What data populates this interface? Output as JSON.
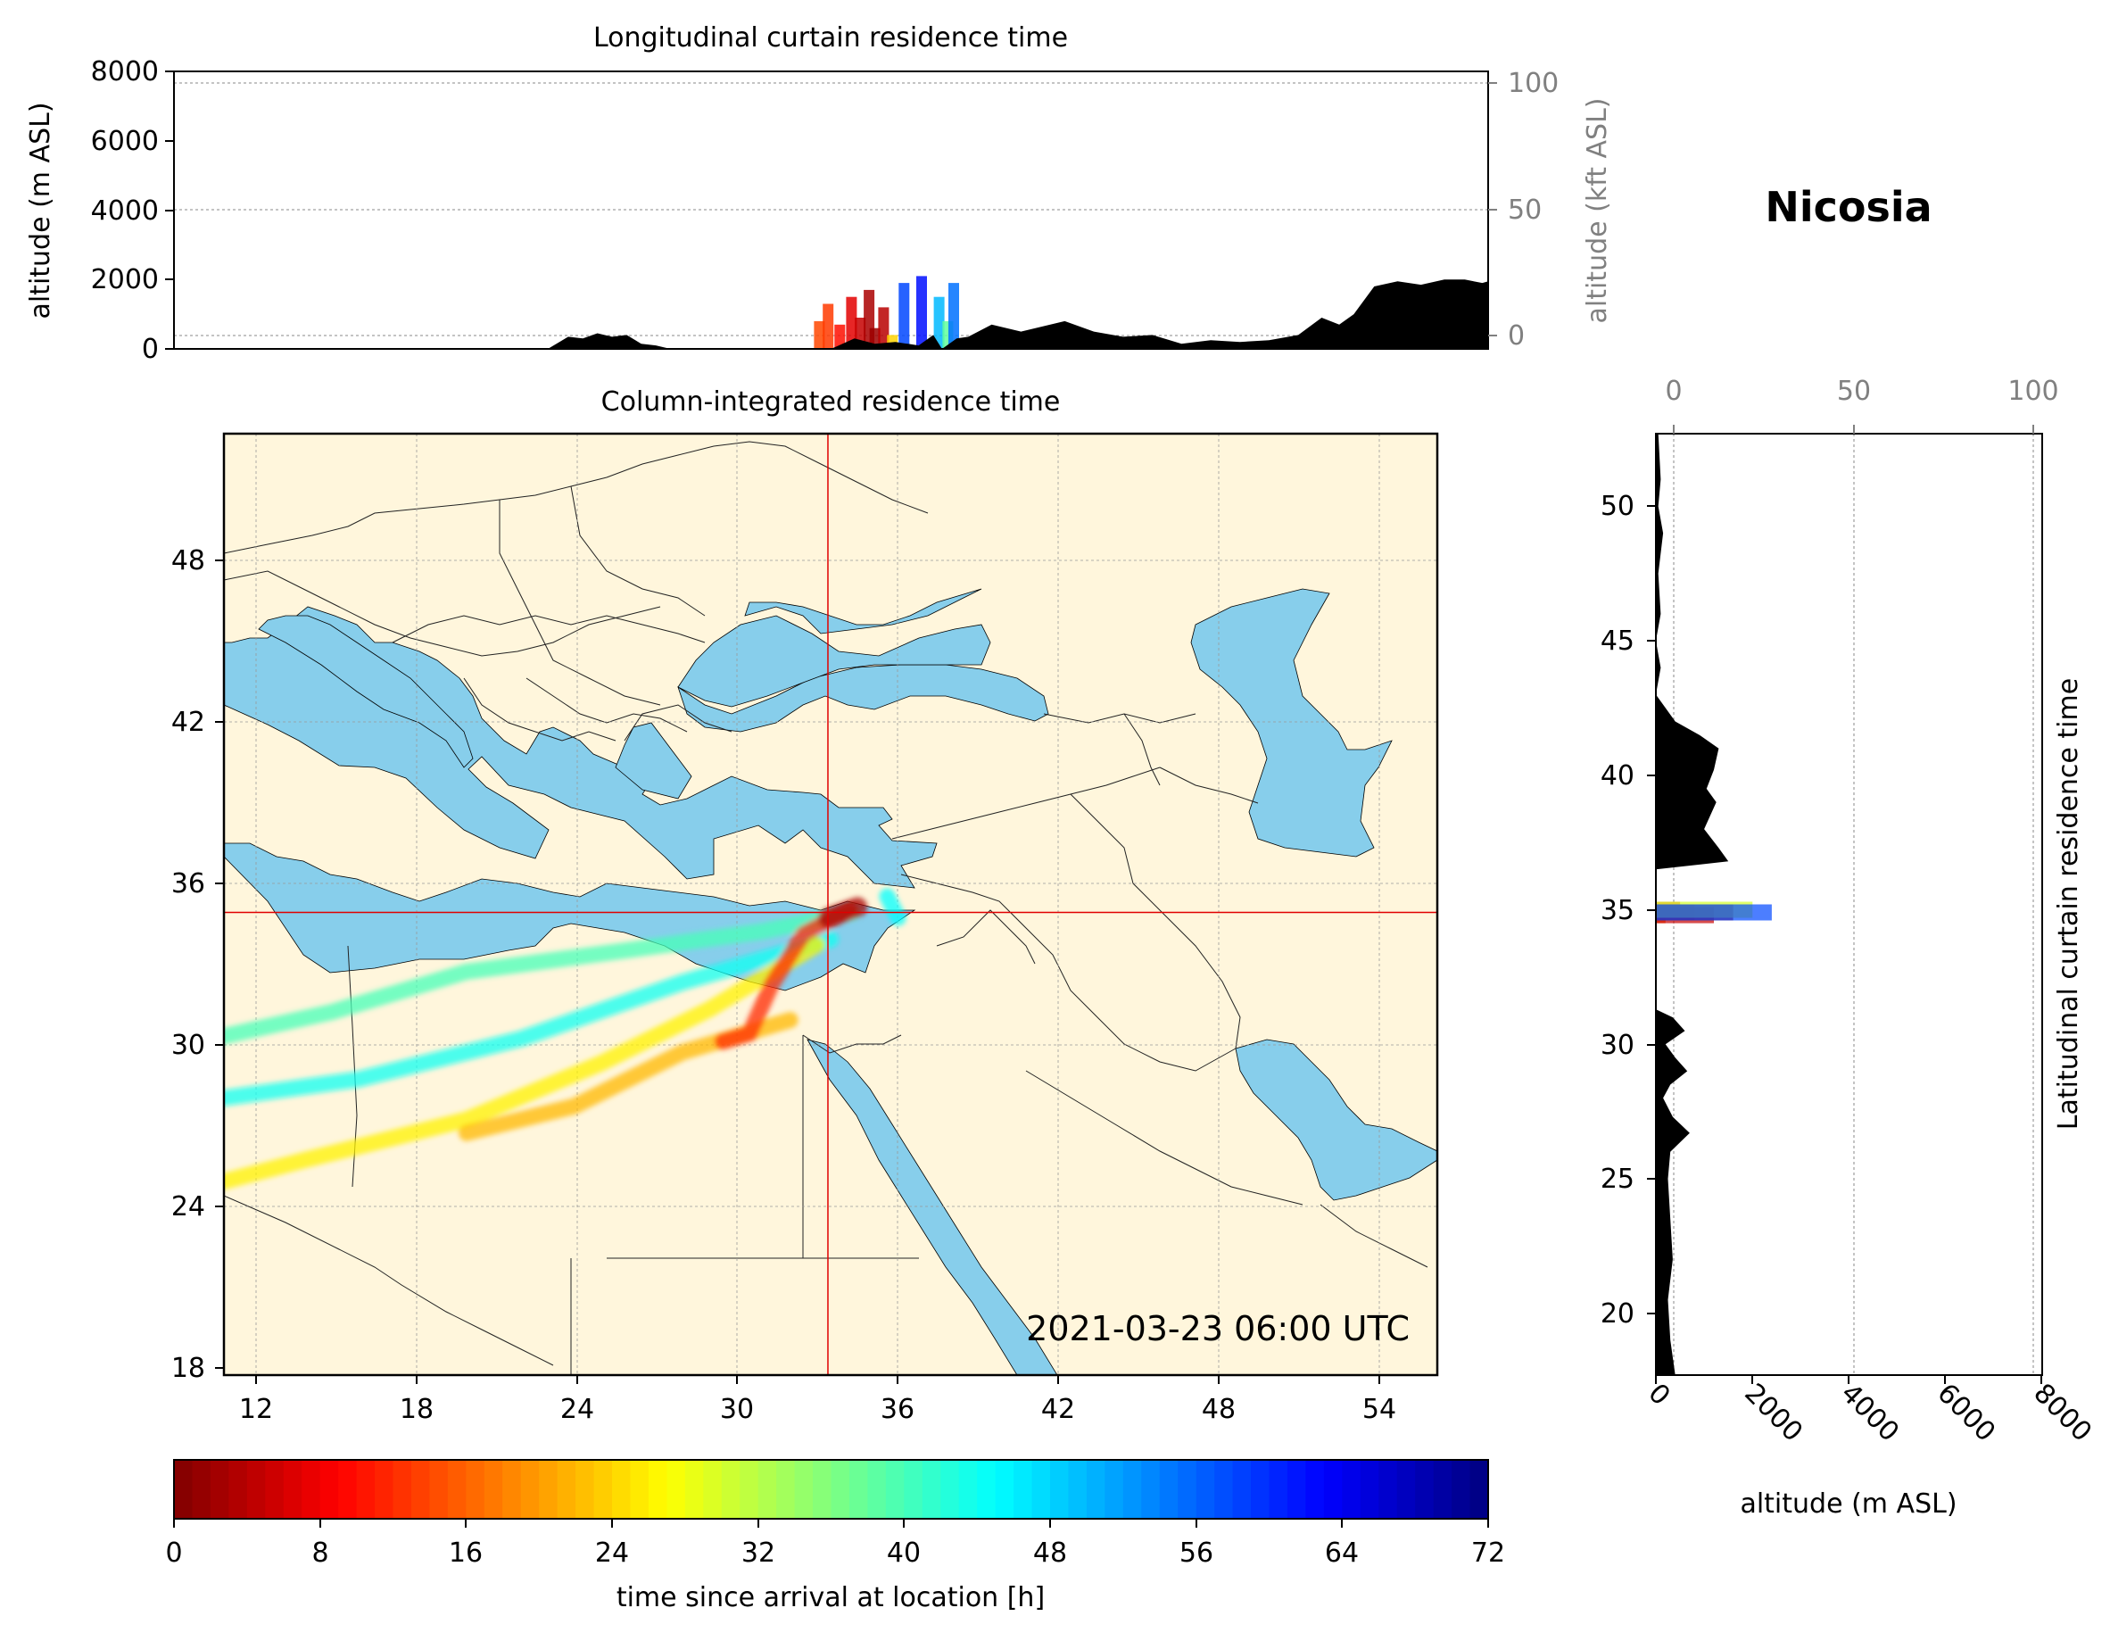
{
  "location": "Nicosia",
  "timestamp": "2021-03-23 06:00 UTC",
  "colors": {
    "ocean": "#87ceeb",
    "land": "#fff6dc",
    "terrain": "#000000",
    "crosshair": "#e00000",
    "secondary_axis": "#808080"
  },
  "chart_data": [
    {
      "type": "area",
      "title": "Longitudinal curtain residence time",
      "ylabel": "altitude (m ASL)",
      "ylim": [
        0,
        8000
      ],
      "yticks": [
        "0",
        "2000",
        "4000",
        "6000",
        "8000"
      ],
      "secondary_ylabel": "altitude (kft ASL)",
      "secondary_yticks": [
        "0",
        "50",
        "100"
      ],
      "secondary_ylim": [
        0,
        100
      ],
      "x_range_deg_lon": [
        9,
        54
      ],
      "terrain_lon": [
        9,
        21.8,
        22.5,
        23.0,
        23.5,
        24.0,
        24.5,
        25.0,
        25.5,
        26.0,
        31.5,
        32.3,
        33.0,
        33.7,
        34.5,
        35.0,
        35.3,
        35.8,
        36.2,
        37.0,
        38.0,
        39.5,
        40.5,
        41.5,
        42.5,
        43.5,
        44.5,
        45.5,
        46.5,
        47.5,
        48.3,
        48.9,
        49.4,
        50.1,
        50.9,
        51.7,
        52.5,
        53.2,
        53.8,
        54.0
      ],
      "terrain_alt_m": [
        0,
        0,
        350,
        300,
        450,
        350,
        400,
        150,
        100,
        0,
        0,
        300,
        150,
        200,
        100,
        400,
        0,
        300,
        350,
        700,
        500,
        800,
        500,
        350,
        400,
        150,
        250,
        200,
        250,
        400,
        900,
        700,
        1000,
        1800,
        1950,
        1850,
        2000,
        2000,
        1900,
        1950
      ],
      "residence": [
        {
          "lon": 31.1,
          "alt": 800,
          "hour": 14
        },
        {
          "lon": 31.4,
          "alt": 1300,
          "hour": 13
        },
        {
          "lon": 31.8,
          "alt": 700,
          "hour": 10
        },
        {
          "lon": 32.2,
          "alt": 1500,
          "hour": 7
        },
        {
          "lon": 32.5,
          "alt": 900,
          "hour": 5
        },
        {
          "lon": 32.8,
          "alt": 1700,
          "hour": 3
        },
        {
          "lon": 33.0,
          "alt": 600,
          "hour": 2
        },
        {
          "lon": 33.3,
          "alt": 1200,
          "hour": 4
        },
        {
          "lon": 33.6,
          "alt": 400,
          "hour": 24
        },
        {
          "lon": 34.0,
          "alt": 1900,
          "hour": 58
        },
        {
          "lon": 34.6,
          "alt": 2100,
          "hour": 62
        },
        {
          "lon": 35.2,
          "alt": 1500,
          "hour": 50
        },
        {
          "lon": 35.5,
          "alt": 800,
          "hour": 38
        },
        {
          "lon": 35.7,
          "alt": 1900,
          "hour": 55
        }
      ]
    },
    {
      "type": "heatmap",
      "title": "Column-integrated residence time",
      "xlim": [
        11,
        56
      ],
      "ylim": [
        18,
        53
      ],
      "xticks": [
        "12",
        "18",
        "24",
        "30",
        "36",
        "42",
        "48",
        "54"
      ],
      "yticks": [
        "18",
        "24",
        "30",
        "36",
        "42",
        "48"
      ],
      "release_point": {
        "lon": 33.4,
        "lat": 35.2
      },
      "plumes": [
        {
          "hour": 40,
          "path": [
            [
              34.3,
              35.2
            ],
            [
              31,
              34.5
            ],
            [
              26,
              33.8
            ],
            [
              20,
              33.0
            ],
            [
              15,
              31.5
            ],
            [
              11,
              30.6
            ]
          ]
        },
        {
          "hour": 44,
          "path": [
            [
              33.5,
              34.2
            ],
            [
              28,
              32.6
            ],
            [
              22,
              30.5
            ],
            [
              16,
              29.0
            ],
            [
              11,
              28.3
            ]
          ]
        },
        {
          "hour": 26,
          "path": [
            [
              33.0,
              34.0
            ],
            [
              29,
              31.6
            ],
            [
              25,
              29.6
            ],
            [
              20,
              27.5
            ],
            [
              14,
              26.0
            ],
            [
              11,
              25.2
            ]
          ]
        },
        {
          "hour": 22,
          "path": [
            [
              32.0,
              31.2
            ],
            [
              28,
              30.0
            ],
            [
              24,
              28.0
            ],
            [
              20,
              27.0
            ]
          ]
        },
        {
          "hour": 12,
          "path": [
            [
              34.2,
              35.3
            ],
            [
              32.5,
              34.4
            ],
            [
              31.3,
              32.5
            ],
            [
              30.5,
              30.7
            ],
            [
              29.5,
              30.4
            ]
          ]
        },
        {
          "hour": 3,
          "path": [
            [
              34.5,
              35.4
            ],
            [
              33.4,
              35.0
            ]
          ]
        },
        {
          "hour": 45,
          "path": [
            [
              35.6,
              35.8
            ],
            [
              36.0,
              35.0
            ]
          ]
        }
      ],
      "colorbar": {
        "label": "time since arrival at location [h]",
        "range": [
          0,
          72
        ],
        "ticks": [
          "0",
          "8",
          "16",
          "24",
          "32",
          "40",
          "48",
          "56",
          "64",
          "72"
        ]
      }
    },
    {
      "type": "area",
      "title": "Latitudinal curtain residence time",
      "xlabel": "altitude (m ASL)",
      "xlim": [
        0,
        8000
      ],
      "xticks": [
        "0",
        "2000",
        "4000",
        "6000",
        "8000"
      ],
      "secondary_xticks": [
        "0",
        "50",
        "100"
      ],
      "secondary_xlim": [
        0,
        100
      ],
      "ylim": [
        17.7,
        52.7
      ],
      "yticks": [
        "20",
        "25",
        "30",
        "35",
        "40",
        "45",
        "50"
      ],
      "terrain_lat": [
        17.7,
        19,
        20.5,
        22,
        23.5,
        25,
        26,
        26.7,
        27.3,
        28,
        28.5,
        29,
        29.5,
        30.0,
        30.5,
        31.0,
        31.3,
        36.5,
        36.8,
        37.3,
        38.0,
        39.0,
        39.5,
        40.2,
        41.0,
        41.5,
        42.0,
        43,
        44,
        45,
        46,
        47.5,
        49,
        50,
        51,
        52.7
      ],
      "terrain_alt_m": [
        400,
        300,
        250,
        350,
        300,
        250,
        300,
        700,
        350,
        150,
        300,
        650,
        400,
        200,
        600,
        350,
        0,
        0,
        1500,
        1300,
        1000,
        1250,
        1050,
        1200,
        1300,
        900,
        400,
        0,
        100,
        0,
        100,
        50,
        150,
        50,
        100,
        50
      ],
      "residence": [
        {
          "alt": 200,
          "lat": 34.8,
          "hour": 16
        },
        {
          "alt": 500,
          "lat": 35.0,
          "hour": 14
        },
        {
          "alt": 800,
          "lat": 34.9,
          "hour": 12
        },
        {
          "alt": 1200,
          "lat": 34.8,
          "hour": 5
        },
        {
          "alt": 1600,
          "lat": 34.9,
          "hour": 3
        },
        {
          "alt": 2000,
          "lat": 35.0,
          "hour": 30
        },
        {
          "alt": 2400,
          "lat": 34.9,
          "hour": 58
        }
      ]
    }
  ]
}
